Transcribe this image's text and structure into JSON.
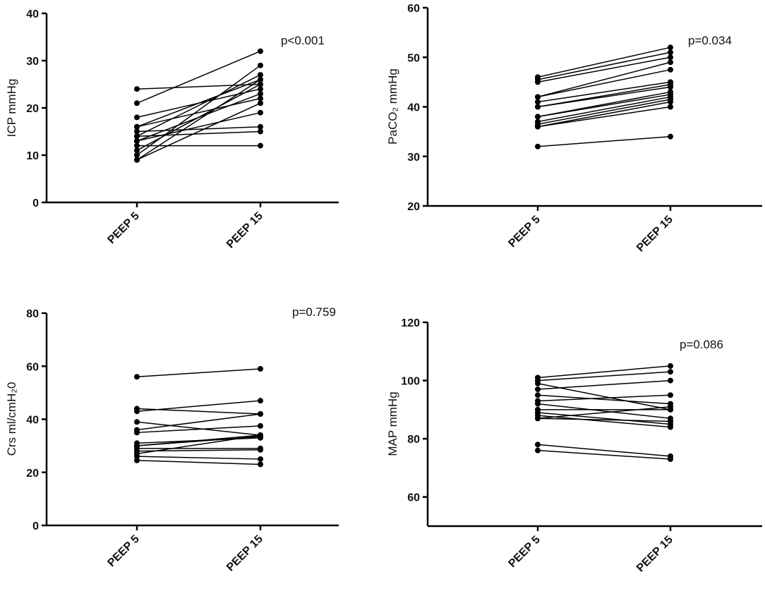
{
  "chart_data": [
    {
      "type": "line",
      "y_label": "ICP mmHg",
      "annotation": "p<0.001",
      "categories": [
        "PEEP 5",
        "PEEP 15"
      ],
      "ylim": [
        0,
        40
      ],
      "yticks": [
        0,
        10,
        20,
        30,
        40
      ],
      "color": "#000000",
      "series": [
        {
          "values": [
            24,
            25
          ]
        },
        {
          "values": [
            21,
            32
          ]
        },
        {
          "values": [
            18,
            24
          ]
        },
        {
          "values": [
            16,
            26
          ]
        },
        {
          "values": [
            16,
            22
          ]
        },
        {
          "values": [
            15,
            16
          ]
        },
        {
          "values": [
            14,
            27
          ]
        },
        {
          "values": [
            14,
            15
          ]
        },
        {
          "values": [
            13,
            23
          ]
        },
        {
          "values": [
            13,
            19
          ]
        },
        {
          "values": [
            12,
            12
          ]
        },
        {
          "values": [
            11,
            25
          ]
        },
        {
          "values": [
            10,
            29
          ]
        },
        {
          "values": [
            9,
            21
          ]
        },
        {
          "values": [
            9,
            26
          ]
        }
      ]
    },
    {
      "type": "line",
      "y_label": "PaCO₂ mmHg",
      "annotation": "p=0.034",
      "categories": [
        "PEEP 5",
        "PEEP 15"
      ],
      "ylim": [
        20,
        60
      ],
      "yticks": [
        20,
        30,
        40,
        50,
        60
      ],
      "color": "#000000",
      "series": [
        {
          "values": [
            46,
            52
          ]
        },
        {
          "values": [
            45.5,
            51
          ]
        },
        {
          "values": [
            45,
            50
          ]
        },
        {
          "values": [
            42,
            49
          ]
        },
        {
          "values": [
            42,
            47.5
          ]
        },
        {
          "values": [
            41,
            45
          ]
        },
        {
          "values": [
            40,
            44.5
          ]
        },
        {
          "values": [
            40,
            44
          ]
        },
        {
          "values": [
            38,
            43
          ]
        },
        {
          "values": [
            38,
            42.5
          ]
        },
        {
          "values": [
            37,
            42
          ]
        },
        {
          "values": [
            36.5,
            41.5
          ]
        },
        {
          "values": [
            36,
            41
          ]
        },
        {
          "values": [
            36,
            40
          ]
        },
        {
          "values": [
            32,
            34
          ]
        }
      ]
    },
    {
      "type": "line",
      "y_label": "Crs ml/cmH₂0",
      "annotation": "p=0.759",
      "categories": [
        "PEEP 5",
        "PEEP 15"
      ],
      "ylim": [
        0,
        80
      ],
      "yticks": [
        0,
        20,
        40,
        60,
        80
      ],
      "color": "#000000",
      "series": [
        {
          "values": [
            56,
            59
          ]
        },
        {
          "values": [
            44,
            42
          ]
        },
        {
          "values": [
            43,
            47
          ]
        },
        {
          "values": [
            39,
            34
          ]
        },
        {
          "values": [
            36,
            42
          ]
        },
        {
          "values": [
            35,
            37.5
          ]
        },
        {
          "values": [
            31,
            33
          ]
        },
        {
          "values": [
            30,
            34
          ]
        },
        {
          "values": [
            30,
            33.5
          ]
        },
        {
          "values": [
            29,
            29
          ]
        },
        {
          "values": [
            28,
            28.5
          ]
        },
        {
          "values": [
            27,
            34
          ]
        },
        {
          "values": [
            26,
            25
          ]
        },
        {
          "values": [
            24.5,
            23
          ]
        }
      ]
    },
    {
      "type": "line",
      "y_label": "MAP mmHg",
      "annotation": "p=0.086",
      "categories": [
        "PEEP 5",
        "PEEP 15"
      ],
      "ylim": [
        50,
        120
      ],
      "yticks": [
        60,
        80,
        100,
        120
      ],
      "color": "#000000",
      "series": [
        {
          "values": [
            101,
            105
          ]
        },
        {
          "values": [
            100,
            103
          ]
        },
        {
          "values": [
            99,
            90
          ]
        },
        {
          "values": [
            97,
            100
          ]
        },
        {
          "values": [
            95,
            92
          ]
        },
        {
          "values": [
            93,
            95
          ]
        },
        {
          "values": [
            92,
            87
          ]
        },
        {
          "values": [
            90,
            90
          ]
        },
        {
          "values": [
            89,
            85
          ]
        },
        {
          "values": [
            88,
            84
          ]
        },
        {
          "values": [
            87,
            91
          ]
        },
        {
          "values": [
            87,
            86
          ]
        },
        {
          "values": [
            78,
            74
          ]
        },
        {
          "values": [
            76,
            73
          ]
        }
      ]
    }
  ]
}
